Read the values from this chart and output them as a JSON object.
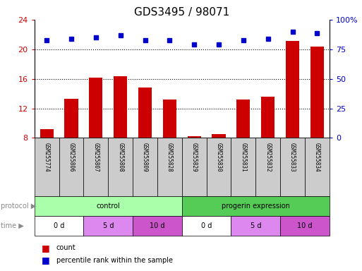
{
  "title": "GDS3495 / 98071",
  "samples": [
    "GSM255774",
    "GSM255806",
    "GSM255807",
    "GSM255808",
    "GSM255809",
    "GSM255828",
    "GSM255829",
    "GSM255830",
    "GSM255831",
    "GSM255832",
    "GSM255833",
    "GSM255834"
  ],
  "counts": [
    9.2,
    13.3,
    16.2,
    16.4,
    14.8,
    13.2,
    8.2,
    8.5,
    13.2,
    13.6,
    21.2,
    20.4
  ],
  "percentile": [
    83,
    84,
    85,
    87,
    83,
    83,
    79,
    79,
    83,
    84,
    90,
    89
  ],
  "ylim_left": [
    8,
    24
  ],
  "ylim_right": [
    0,
    100
  ],
  "yticks_left": [
    8,
    12,
    16,
    20,
    24
  ],
  "yticks_right": [
    0,
    25,
    50,
    75,
    100
  ],
  "bar_color": "#cc0000",
  "dot_color": "#0000cc",
  "protocol_groups": [
    {
      "label": "control",
      "start": 0,
      "end": 6,
      "color": "#aaffaa"
    },
    {
      "label": "progerin expression",
      "start": 6,
      "end": 12,
      "color": "#55cc55"
    }
  ],
  "time_groups": [
    {
      "label": "0 d",
      "start": 0,
      "end": 2,
      "color": "#ffffff"
    },
    {
      "label": "5 d",
      "start": 2,
      "end": 4,
      "color": "#dd88ee"
    },
    {
      "label": "10 d",
      "start": 4,
      "end": 6,
      "color": "#cc55cc"
    },
    {
      "label": "0 d",
      "start": 6,
      "end": 8,
      "color": "#ffffff"
    },
    {
      "label": "5 d",
      "start": 8,
      "end": 10,
      "color": "#dd88ee"
    },
    {
      "label": "10 d",
      "start": 10,
      "end": 12,
      "color": "#cc55cc"
    }
  ],
  "legend_count_label": "count",
  "legend_pct_label": "percentile rank within the sample",
  "protocol_label": "protocol",
  "time_label": "time",
  "bg_color": "#ffffff",
  "sample_box_color": "#cccccc",
  "title_fontsize": 11,
  "axis_label_color_left": "#cc0000",
  "axis_label_color_right": "#0000cc"
}
